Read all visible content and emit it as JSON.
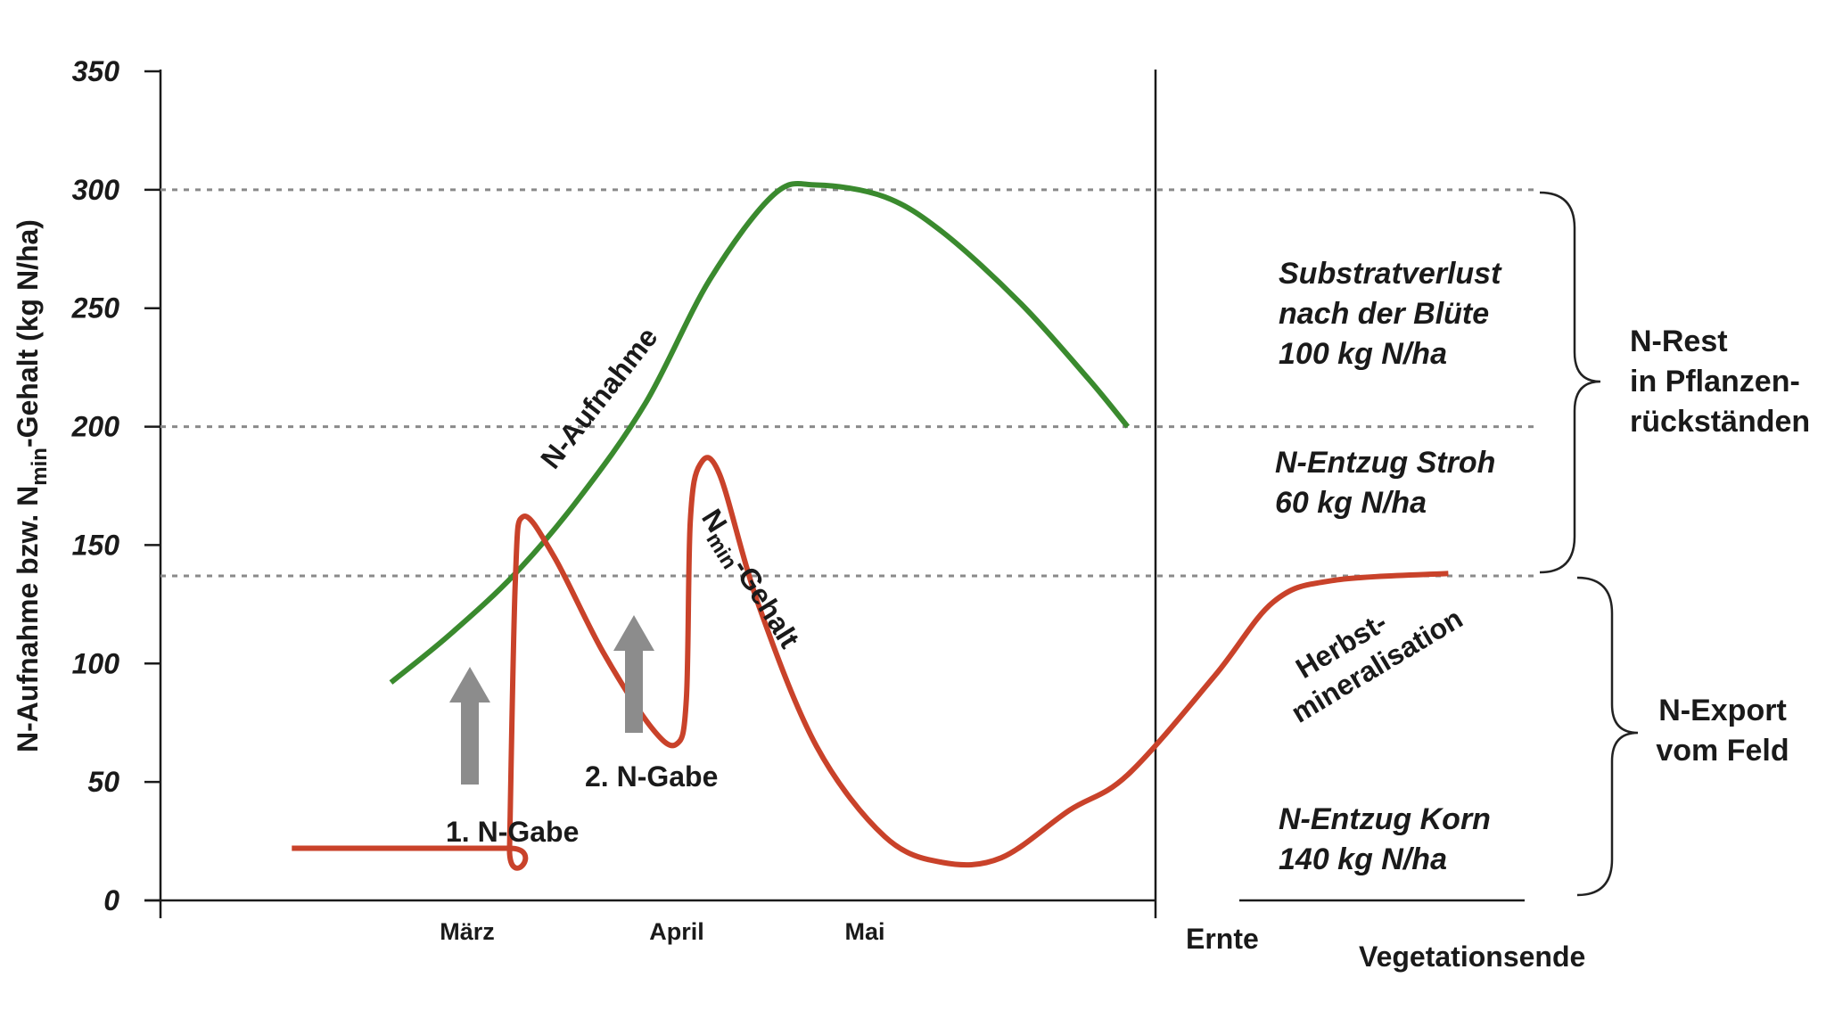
{
  "chart_data": {
    "type": "line",
    "y_axis": {
      "label_prefix": "N-Aufnahme bzw. N",
      "label_subscript": "min",
      "label_suffix": "-Gehalt (kg N/ha)",
      "ylim": [
        0,
        350
      ],
      "ticks": [
        "0",
        "50",
        "100",
        "150",
        "200",
        "250",
        "300",
        "350"
      ],
      "tick_values": [
        0,
        50,
        100,
        150,
        200,
        250,
        300,
        350
      ]
    },
    "x_axis": {
      "months": [
        "März",
        "April",
        "Mai"
      ],
      "after_harvest": [
        "Ernte",
        "Vegetationsende"
      ]
    },
    "reference_lines": [
      300,
      200,
      137
    ],
    "series": [
      {
        "name": "N-Aufnahme",
        "color": "#3a8a2e",
        "points": [
          [
            0.36,
            92
          ],
          [
            0.66,
            112
          ],
          [
            1.0,
            138
          ],
          [
            1.33,
            170
          ],
          [
            1.67,
            210
          ],
          [
            2.0,
            262
          ],
          [
            2.33,
            298
          ],
          [
            2.55,
            302
          ],
          [
            2.9,
            297
          ],
          [
            3.2,
            282
          ],
          [
            3.6,
            252
          ],
          [
            3.95,
            220
          ],
          [
            4.15,
            200
          ]
        ]
      },
      {
        "name": "Nmin-Gehalt",
        "label_main": "N",
        "label_sub": "min",
        "label_rest": "-Gehalt",
        "color": "#c9422a",
        "points": [
          [
            -0.15,
            22
          ],
          [
            0.97,
            22
          ],
          [
            0.97,
            22
          ],
          [
            1.0,
            135
          ],
          [
            1.04,
            162
          ],
          [
            1.2,
            145
          ],
          [
            1.45,
            105
          ],
          [
            1.7,
            73
          ],
          [
            1.83,
            66
          ],
          [
            1.88,
            85
          ],
          [
            1.9,
            160
          ],
          [
            1.95,
            184
          ],
          [
            2.05,
            180
          ],
          [
            2.25,
            125
          ],
          [
            2.55,
            65
          ],
          [
            2.9,
            27
          ],
          [
            3.2,
            16
          ],
          [
            3.5,
            18
          ],
          [
            3.85,
            38
          ],
          [
            4.15,
            53
          ],
          [
            4.6,
            95
          ],
          [
            4.9,
            126
          ],
          [
            5.2,
            135
          ],
          [
            5.8,
            138
          ]
        ]
      }
    ],
    "annotations": {
      "gabe1": "1. N-Gabe",
      "gabe2": "2. N-Gabe",
      "herbst_line1": "Herbst-",
      "herbst_line2": "mineralisation",
      "substrat": [
        "Substratverlust",
        "nach der Blüte",
        "100 kg N/ha"
      ],
      "stroh": [
        "N-Entzug Stroh",
        "60 kg N/ha"
      ],
      "korn": [
        "N-Entzug Korn",
        "140 kg N/ha"
      ],
      "n_rest": [
        "N-Rest",
        "in Pflanzen-",
        "rückständen"
      ],
      "n_export": [
        "N-Export",
        "vom Feld"
      ]
    },
    "colors": {
      "arrow": "#8c8c8c",
      "reference": "#8a8a8a"
    }
  }
}
